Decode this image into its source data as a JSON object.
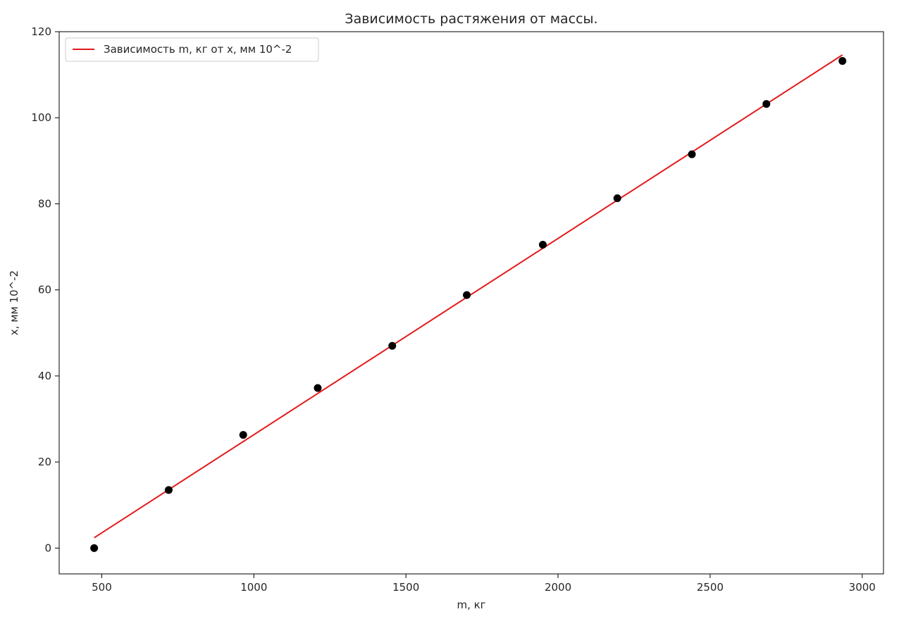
{
  "chart_data": {
    "type": "scatter",
    "title": "Зависимость растяжения от массы.",
    "xlabel": "m, кг",
    "ylabel": "x, мм 10^-2",
    "xlim": [
      360,
      3070
    ],
    "ylim": [
      -6,
      120
    ],
    "xticks": [
      500,
      1000,
      1500,
      2000,
      2500,
      3000
    ],
    "yticks": [
      0,
      20,
      40,
      60,
      80,
      100,
      120
    ],
    "grid": false,
    "legend_position": "upper-left",
    "series": [
      {
        "type": "line",
        "name": "Зависимость m, кг от x, мм 10^-2",
        "color": "#e31a1c",
        "x": [
          475,
          2935
        ],
        "y": [
          2.4,
          114.6
        ]
      },
      {
        "type": "scatter",
        "color": "#000000",
        "x": [
          475,
          720,
          965,
          1210,
          1455,
          1700,
          1950,
          2195,
          2440,
          2685,
          2935
        ],
        "y": [
          0,
          13.5,
          26.3,
          37.2,
          47.0,
          58.8,
          70.5,
          81.3,
          91.5,
          103.2,
          113.2
        ]
      }
    ]
  }
}
